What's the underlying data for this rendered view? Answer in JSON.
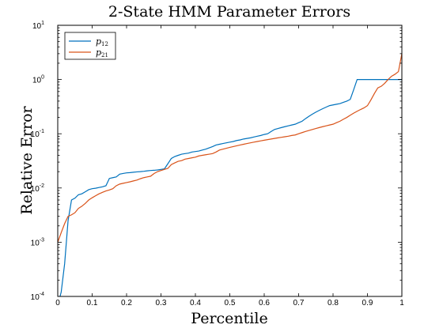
{
  "chart_data": {
    "type": "line",
    "title": "2-State HMM Parameter Errors",
    "xlabel": "Percentile",
    "ylabel": "Relative Error",
    "xlim": [
      0,
      1
    ],
    "ylim": [
      0.0001,
      10
    ],
    "yscale": "log",
    "grid": false,
    "legend_position": "top-left",
    "xticks": [
      "0",
      "0.1",
      "0.2",
      "0.3",
      "0.4",
      "0.5",
      "0.6",
      "0.7",
      "0.8",
      "0.9",
      "1"
    ],
    "yticks": [
      {
        "base": "10",
        "exp": "-4"
      },
      {
        "base": "10",
        "exp": "-3"
      },
      {
        "base": "10",
        "exp": "-2"
      },
      {
        "base": "10",
        "exp": "-1"
      },
      {
        "base": "10",
        "exp": "0"
      },
      {
        "base": "10",
        "exp": "1"
      }
    ],
    "series": [
      {
        "name": "p12",
        "name_main": "p",
        "name_sub": "12",
        "color": "#0072BD",
        "points": [
          [
            0.0,
            7e-05
          ],
          [
            0.01,
            0.00012
          ],
          [
            0.02,
            0.0004
          ],
          [
            0.03,
            0.0025
          ],
          [
            0.04,
            0.006
          ],
          [
            0.05,
            0.0065
          ],
          [
            0.06,
            0.0075
          ],
          [
            0.07,
            0.0078
          ],
          [
            0.08,
            0.0085
          ],
          [
            0.09,
            0.0093
          ],
          [
            0.1,
            0.0097
          ],
          [
            0.11,
            0.0099
          ],
          [
            0.12,
            0.0102
          ],
          [
            0.13,
            0.0105
          ],
          [
            0.14,
            0.011
          ],
          [
            0.15,
            0.015
          ],
          [
            0.16,
            0.0155
          ],
          [
            0.17,
            0.016
          ],
          [
            0.18,
            0.018
          ],
          [
            0.19,
            0.0185
          ],
          [
            0.2,
            0.019
          ],
          [
            0.21,
            0.0192
          ],
          [
            0.22,
            0.0195
          ],
          [
            0.23,
            0.0198
          ],
          [
            0.24,
            0.02
          ],
          [
            0.25,
            0.0203
          ],
          [
            0.26,
            0.0207
          ],
          [
            0.27,
            0.021
          ],
          [
            0.28,
            0.0212
          ],
          [
            0.29,
            0.0215
          ],
          [
            0.3,
            0.022
          ],
          [
            0.31,
            0.0225
          ],
          [
            0.32,
            0.028
          ],
          [
            0.33,
            0.035
          ],
          [
            0.34,
            0.038
          ],
          [
            0.35,
            0.04
          ],
          [
            0.36,
            0.042
          ],
          [
            0.37,
            0.043
          ],
          [
            0.38,
            0.044
          ],
          [
            0.39,
            0.046
          ],
          [
            0.4,
            0.047
          ],
          [
            0.41,
            0.048
          ],
          [
            0.42,
            0.05
          ],
          [
            0.43,
            0.052
          ],
          [
            0.44,
            0.055
          ],
          [
            0.45,
            0.058
          ],
          [
            0.46,
            0.062
          ],
          [
            0.47,
            0.064
          ],
          [
            0.48,
            0.066
          ],
          [
            0.49,
            0.068
          ],
          [
            0.5,
            0.07
          ],
          [
            0.51,
            0.072
          ],
          [
            0.52,
            0.075
          ],
          [
            0.53,
            0.077
          ],
          [
            0.54,
            0.08
          ],
          [
            0.55,
            0.082
          ],
          [
            0.56,
            0.084
          ],
          [
            0.57,
            0.087
          ],
          [
            0.58,
            0.09
          ],
          [
            0.59,
            0.093
          ],
          [
            0.6,
            0.097
          ],
          [
            0.61,
            0.1
          ],
          [
            0.62,
            0.11
          ],
          [
            0.63,
            0.12
          ],
          [
            0.64,
            0.125
          ],
          [
            0.65,
            0.13
          ],
          [
            0.66,
            0.135
          ],
          [
            0.67,
            0.14
          ],
          [
            0.68,
            0.145
          ],
          [
            0.69,
            0.15
          ],
          [
            0.7,
            0.16
          ],
          [
            0.71,
            0.17
          ],
          [
            0.72,
            0.19
          ],
          [
            0.73,
            0.21
          ],
          [
            0.74,
            0.23
          ],
          [
            0.75,
            0.25
          ],
          [
            0.76,
            0.27
          ],
          [
            0.77,
            0.29
          ],
          [
            0.78,
            0.31
          ],
          [
            0.79,
            0.33
          ],
          [
            0.8,
            0.34
          ],
          [
            0.81,
            0.35
          ],
          [
            0.82,
            0.36
          ],
          [
            0.83,
            0.38
          ],
          [
            0.84,
            0.4
          ],
          [
            0.85,
            0.43
          ],
          [
            0.86,
            0.65
          ],
          [
            0.87,
            1.0
          ],
          [
            0.88,
            1.0
          ],
          [
            0.89,
            1.0
          ],
          [
            0.9,
            1.0
          ],
          [
            0.91,
            1.0
          ],
          [
            0.92,
            1.0
          ],
          [
            0.93,
            1.0
          ],
          [
            0.94,
            1.0
          ],
          [
            0.95,
            1.0
          ],
          [
            0.96,
            1.0
          ],
          [
            0.97,
            1.0
          ],
          [
            0.98,
            1.0
          ],
          [
            0.99,
            1.0
          ],
          [
            1.0,
            1.0
          ]
        ]
      },
      {
        "name": "p21",
        "name_main": "p",
        "name_sub": "21",
        "color": "#D95319",
        "points": [
          [
            0.0,
            0.001
          ],
          [
            0.01,
            0.0015
          ],
          [
            0.02,
            0.0022
          ],
          [
            0.03,
            0.003
          ],
          [
            0.04,
            0.0032
          ],
          [
            0.05,
            0.0035
          ],
          [
            0.06,
            0.0042
          ],
          [
            0.07,
            0.0046
          ],
          [
            0.08,
            0.0052
          ],
          [
            0.09,
            0.006
          ],
          [
            0.1,
            0.0066
          ],
          [
            0.11,
            0.0072
          ],
          [
            0.12,
            0.0078
          ],
          [
            0.13,
            0.0083
          ],
          [
            0.14,
            0.0088
          ],
          [
            0.15,
            0.0092
          ],
          [
            0.16,
            0.0097
          ],
          [
            0.17,
            0.011
          ],
          [
            0.18,
            0.0118
          ],
          [
            0.19,
            0.0122
          ],
          [
            0.2,
            0.0126
          ],
          [
            0.21,
            0.013
          ],
          [
            0.22,
            0.0135
          ],
          [
            0.23,
            0.014
          ],
          [
            0.24,
            0.0148
          ],
          [
            0.25,
            0.0155
          ],
          [
            0.26,
            0.016
          ],
          [
            0.27,
            0.0165
          ],
          [
            0.28,
            0.0185
          ],
          [
            0.29,
            0.02
          ],
          [
            0.3,
            0.021
          ],
          [
            0.31,
            0.022
          ],
          [
            0.32,
            0.023
          ],
          [
            0.33,
            0.027
          ],
          [
            0.34,
            0.029
          ],
          [
            0.35,
            0.031
          ],
          [
            0.36,
            0.032
          ],
          [
            0.37,
            0.034
          ],
          [
            0.38,
            0.035
          ],
          [
            0.39,
            0.036
          ],
          [
            0.4,
            0.037
          ],
          [
            0.41,
            0.039
          ],
          [
            0.42,
            0.04
          ],
          [
            0.43,
            0.041
          ],
          [
            0.44,
            0.042
          ],
          [
            0.45,
            0.043
          ],
          [
            0.46,
            0.046
          ],
          [
            0.47,
            0.05
          ],
          [
            0.48,
            0.052
          ],
          [
            0.49,
            0.054
          ],
          [
            0.5,
            0.056
          ],
          [
            0.51,
            0.058
          ],
          [
            0.52,
            0.06
          ],
          [
            0.53,
            0.062
          ],
          [
            0.54,
            0.064
          ],
          [
            0.55,
            0.066
          ],
          [
            0.56,
            0.068
          ],
          [
            0.57,
            0.07
          ],
          [
            0.58,
            0.072
          ],
          [
            0.59,
            0.074
          ],
          [
            0.6,
            0.076
          ],
          [
            0.61,
            0.078
          ],
          [
            0.62,
            0.08
          ],
          [
            0.63,
            0.082
          ],
          [
            0.64,
            0.084
          ],
          [
            0.65,
            0.086
          ],
          [
            0.66,
            0.088
          ],
          [
            0.67,
            0.09
          ],
          [
            0.68,
            0.093
          ],
          [
            0.69,
            0.095
          ],
          [
            0.7,
            0.1
          ],
          [
            0.71,
            0.105
          ],
          [
            0.72,
            0.11
          ],
          [
            0.73,
            0.115
          ],
          [
            0.74,
            0.12
          ],
          [
            0.75,
            0.125
          ],
          [
            0.76,
            0.13
          ],
          [
            0.77,
            0.135
          ],
          [
            0.78,
            0.14
          ],
          [
            0.79,
            0.145
          ],
          [
            0.8,
            0.15
          ],
          [
            0.81,
            0.16
          ],
          [
            0.82,
            0.17
          ],
          [
            0.83,
            0.185
          ],
          [
            0.84,
            0.2
          ],
          [
            0.85,
            0.22
          ],
          [
            0.86,
            0.24
          ],
          [
            0.87,
            0.26
          ],
          [
            0.88,
            0.28
          ],
          [
            0.89,
            0.3
          ],
          [
            0.9,
            0.33
          ],
          [
            0.91,
            0.42
          ],
          [
            0.92,
            0.55
          ],
          [
            0.93,
            0.7
          ],
          [
            0.94,
            0.75
          ],
          [
            0.95,
            0.85
          ],
          [
            0.96,
            1.0
          ],
          [
            0.97,
            1.15
          ],
          [
            0.98,
            1.25
          ],
          [
            0.99,
            1.4
          ],
          [
            1.0,
            3.0
          ]
        ]
      }
    ]
  }
}
